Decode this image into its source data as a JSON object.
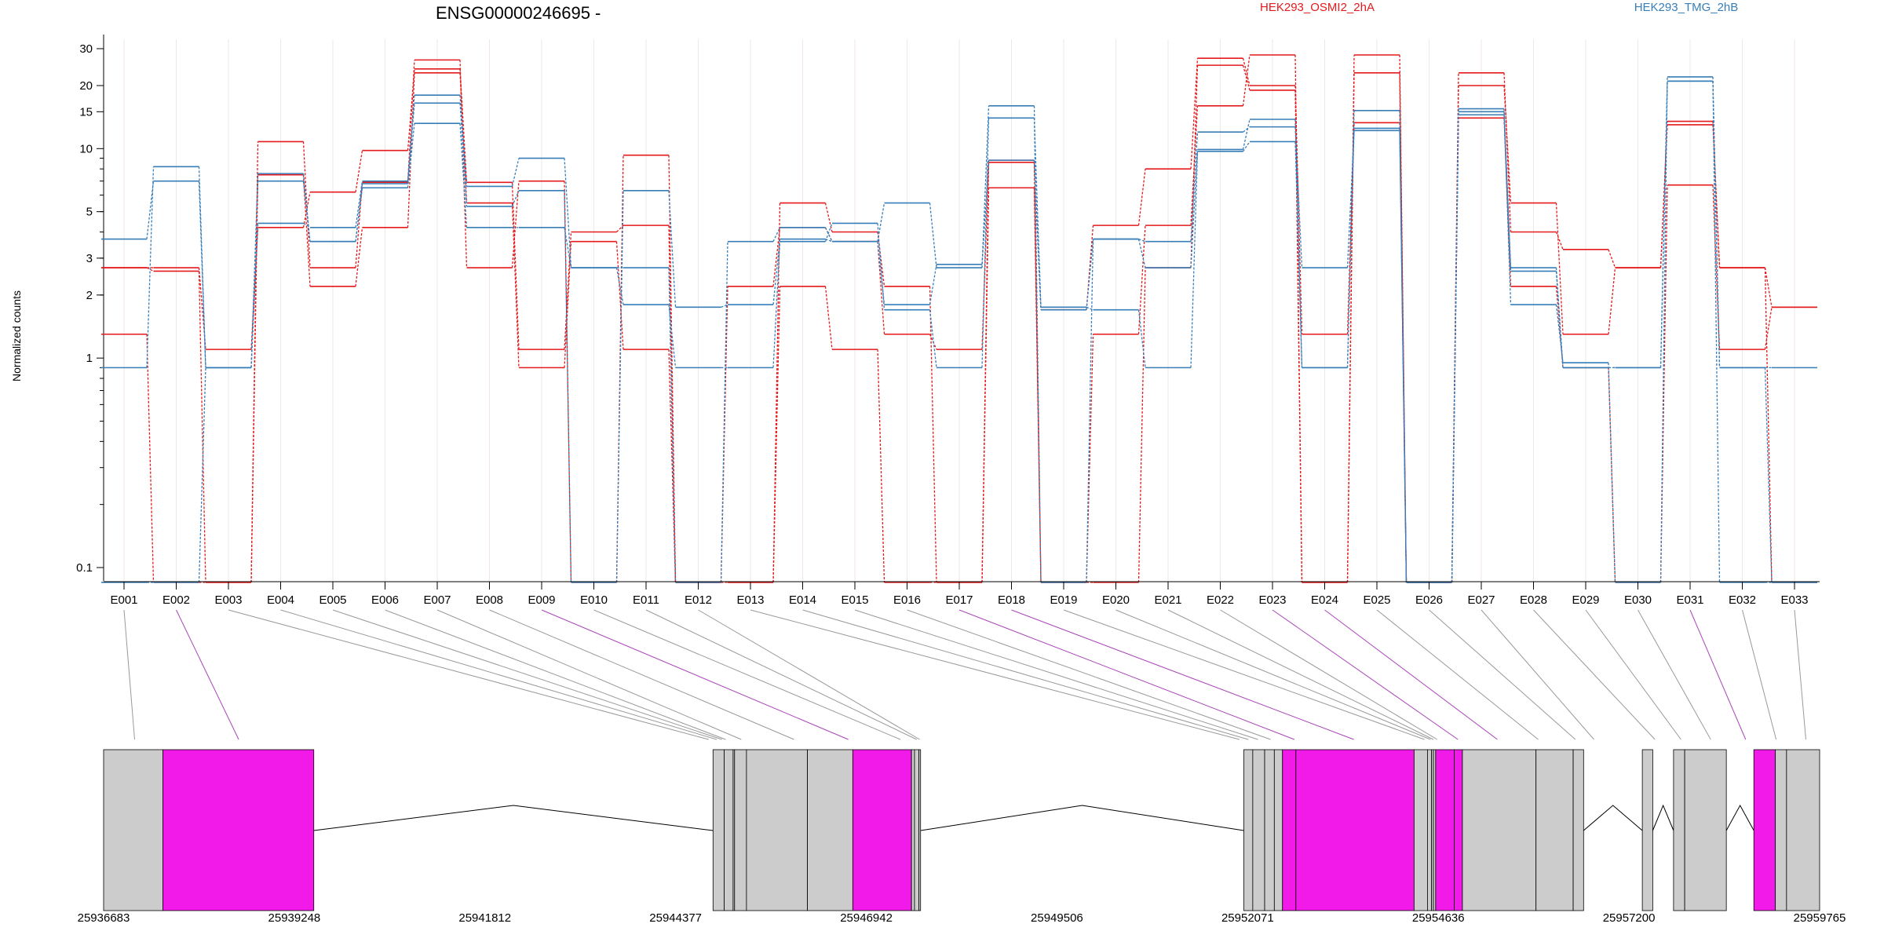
{
  "chart_data": {
    "type": "line",
    "title": "ENSG00000246695 -",
    "ylabel": "Normalized counts",
    "y_scale": "log",
    "ylim": [
      0.085,
      34
    ],
    "y_ticks": [
      0.1,
      1,
      2,
      3,
      5,
      10,
      15,
      20,
      30
    ],
    "y_tick_labels": [
      "0.1",
      "1",
      "2",
      "3",
      "5",
      "10",
      "15",
      "20",
      "30"
    ],
    "y_zero_floor": 0.085,
    "legend_placement": "top-right",
    "grid": false,
    "categories": [
      "E001",
      "E002",
      "E003",
      "E004",
      "E005",
      "E006",
      "E007",
      "E008",
      "E009",
      "E010",
      "E011",
      "E012",
      "E013",
      "E014",
      "E015",
      "E016",
      "E017",
      "E018",
      "E019",
      "E020",
      "E021",
      "E022",
      "E023",
      "E024",
      "E025",
      "E026",
      "E027",
      "E028",
      "E029",
      "E030",
      "E031",
      "E032",
      "E033"
    ],
    "conditions": [
      {
        "name": "HEK293_OSMI2_2hA",
        "color": "#e41a1c"
      },
      {
        "name": "HEK293_TMG_2hB",
        "color": "#377eb8"
      }
    ],
    "series": [
      {
        "condition": 0,
        "values": [
          1.3,
          0.085,
          0.085,
          7.5,
          2.2,
          4.2,
          23.0,
          5.5,
          0.9,
          3.6,
          1.1,
          0.085,
          0.085,
          2.2,
          1.1,
          0.085,
          0.085,
          6.5,
          0.085,
          0.085,
          2.7,
          25.0,
          19.0,
          0.085,
          23.0,
          0.085,
          14.0,
          2.2,
          0.9,
          0.085,
          6.7,
          1.1,
          1.75
        ]
      },
      {
        "condition": 0,
        "values": [
          2.7,
          2.7,
          1.1,
          4.2,
          6.2,
          9.8,
          24.0,
          6.9,
          1.1,
          4.0,
          4.3,
          0.085,
          2.2,
          4.2,
          3.6,
          1.3,
          1.1,
          8.6,
          0.085,
          1.3,
          4.3,
          16.0,
          28.0,
          0.085,
          28.0,
          0.085,
          20.0,
          5.5,
          1.3,
          2.7,
          13.5,
          2.7,
          0.085
        ]
      },
      {
        "condition": 0,
        "values": [
          2.7,
          2.6,
          0.085,
          10.8,
          2.7,
          6.9,
          26.5,
          2.7,
          7.0,
          0.085,
          9.3,
          0.085,
          0.085,
          5.5,
          4.0,
          2.2,
          0.085,
          8.8,
          1.7,
          4.3,
          8.0,
          27.0,
          20.0,
          1.3,
          13.3,
          0.085,
          23.0,
          4.0,
          3.3,
          2.7,
          13.0,
          2.7,
          1.75
        ]
      },
      {
        "condition": 1,
        "values": [
          3.7,
          7.0,
          0.9,
          7.0,
          3.6,
          6.5,
          13.2,
          4.2,
          4.2,
          2.7,
          1.8,
          0.9,
          0.9,
          3.6,
          4.4,
          1.7,
          0.9,
          14.0,
          1.75,
          1.7,
          0.9,
          9.7,
          10.8,
          0.9,
          12.5,
          0.085,
          14.5,
          2.6,
          0.9,
          0.9,
          21.0,
          0.9,
          0.9
        ]
      },
      {
        "condition": 1,
        "values": [
          0.9,
          8.2,
          0.9,
          4.4,
          4.2,
          7.0,
          16.5,
          5.3,
          6.3,
          0.085,
          6.3,
          1.75,
          1.8,
          3.7,
          3.6,
          1.8,
          2.8,
          8.8,
          1.7,
          3.7,
          3.6,
          12.0,
          12.7,
          2.7,
          12.2,
          0.085,
          15.0,
          1.8,
          0.95,
          0.085,
          22.0,
          0.085,
          0.085
        ]
      },
      {
        "condition": 1,
        "values": [
          0.085,
          0.085,
          0.9,
          7.6,
          3.6,
          6.8,
          18.0,
          6.6,
          9.0,
          2.7,
          2.7,
          0.085,
          3.6,
          4.2,
          3.6,
          5.5,
          2.7,
          16.0,
          0.085,
          3.7,
          2.7,
          9.9,
          13.8,
          0.9,
          15.2,
          0.085,
          15.5,
          2.7,
          0.9,
          0.9,
          21.0,
          0.9,
          0.085
        ]
      }
    ],
    "gene_model": {
      "x_ticks": [
        "25936683",
        "25939248",
        "25941812",
        "25944377",
        "25946942",
        "25949506",
        "25952071",
        "25954636",
        "25957200",
        "25959765"
      ],
      "tick_values": [
        25936683,
        25939248,
        25941812,
        25944377,
        25946942,
        25949506,
        25952071,
        25954636,
        25957200,
        25959765
      ],
      "xlim": [
        25936683,
        25959765
      ],
      "colors": {
        "exon": "#cccccc",
        "highlight": "#f21ae8",
        "link": "#999999",
        "link_highlight": "#a945b8"
      },
      "highlighted_exons": [
        "E002",
        "E009",
        "E017",
        "E018",
        "E023",
        "E024",
        "E031"
      ],
      "exon_genomic": [
        {
          "id": "E001",
          "start": 25936683,
          "end": 25937480
        },
        {
          "id": "E002",
          "start": 25937480,
          "end": 25939510
        },
        {
          "id": "E003",
          "start": 25944880,
          "end": 25945030
        },
        {
          "id": "E004",
          "start": 25945030,
          "end": 25945150
        },
        {
          "id": "E005",
          "start": 25945150,
          "end": 25945170
        },
        {
          "id": "E006",
          "start": 25945170,
          "end": 25945330
        },
        {
          "id": "E007",
          "start": 25945330,
          "end": 25946150
        },
        {
          "id": "E008",
          "start": 25946150,
          "end": 25946760
        },
        {
          "id": "E009",
          "start": 25946760,
          "end": 25947550
        },
        {
          "id": "E010",
          "start": 25947550,
          "end": 25947590
        },
        {
          "id": "E011",
          "start": 25947590,
          "end": 25947650
        },
        {
          "id": "E012",
          "start": 25947650,
          "end": 25947672
        },
        {
          "id": "E013",
          "start": 25952020,
          "end": 25952140
        },
        {
          "id": "E014",
          "start": 25952140,
          "end": 25952300
        },
        {
          "id": "E015",
          "start": 25952300,
          "end": 25952430
        },
        {
          "id": "E016",
          "start": 25952430,
          "end": 25952540
        },
        {
          "id": "E017",
          "start": 25952540,
          "end": 25952720
        },
        {
          "id": "E018",
          "start": 25952720,
          "end": 25954310
        },
        {
          "id": "E019",
          "start": 25954310,
          "end": 25954490
        },
        {
          "id": "E020",
          "start": 25954490,
          "end": 25954545
        },
        {
          "id": "E021",
          "start": 25954545,
          "end": 25954570
        },
        {
          "id": "E022",
          "start": 25954570,
          "end": 25954600
        },
        {
          "id": "E023",
          "start": 25954600,
          "end": 25954850
        },
        {
          "id": "E024",
          "start": 25954850,
          "end": 25954960
        },
        {
          "id": "E025",
          "start": 25954960,
          "end": 25955950
        },
        {
          "id": "E026",
          "start": 25955950,
          "end": 25956450
        },
        {
          "id": "E027",
          "start": 25956450,
          "end": 25956590
        },
        {
          "id": "E028",
          "start": 25957380,
          "end": 25957520
        },
        {
          "id": "E029",
          "start": 25957800,
          "end": 25957950
        },
        {
          "id": "E030",
          "start": 25957950,
          "end": 25958510
        },
        {
          "id": "E031",
          "start": 25958880,
          "end": 25959170
        },
        {
          "id": "E032",
          "start": 25959170,
          "end": 25959320
        },
        {
          "id": "E033",
          "start": 25959320,
          "end": 25959765
        }
      ],
      "exon_tick_genomic": [
        25937100,
        25938500,
        25944820,
        25944930,
        25945000,
        25945050,
        25945260,
        25945970,
        25946700,
        25947400,
        25947620,
        25947660,
        25951960,
        25952080,
        25952210,
        25952380,
        25952700,
        25953500,
        25954450,
        25954530,
        25954570,
        25954620,
        25954900,
        25955430,
        25955980,
        25956480,
        25956730,
        25957550,
        25957900,
        25958300,
        25958770,
        25959180,
        25959580
      ]
    }
  }
}
